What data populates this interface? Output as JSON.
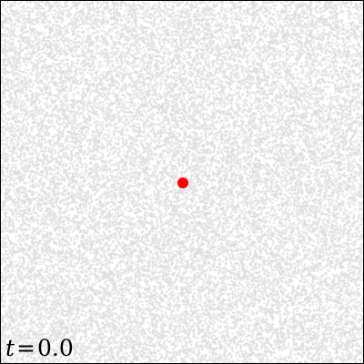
{
  "simulation": {
    "time_variable": "t",
    "time_equals": "=",
    "time_value": "0.0",
    "colors": {
      "background": "#ffffff",
      "particles": "#dedede",
      "tracer": "#ff0000",
      "frame": "#000000"
    }
  }
}
